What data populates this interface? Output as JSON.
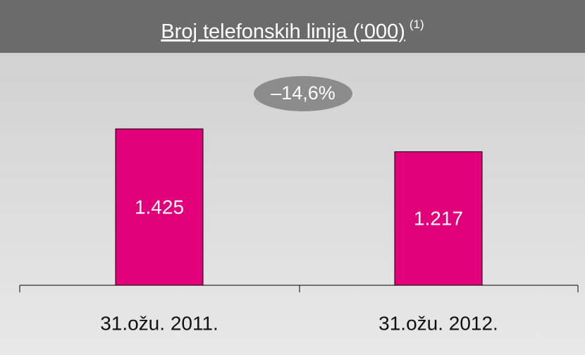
{
  "chart_data": {
    "type": "bar",
    "title": "Broj telefonskih linija (‘000)",
    "title_note": "(1)",
    "annotation": "–14,6%",
    "categories": [
      "31.ožu. 2011.",
      "31.ožu. 2012."
    ],
    "values": [
      1425,
      1217
    ],
    "value_labels": [
      "1.425",
      "1.217"
    ],
    "color": "#e2007a"
  }
}
